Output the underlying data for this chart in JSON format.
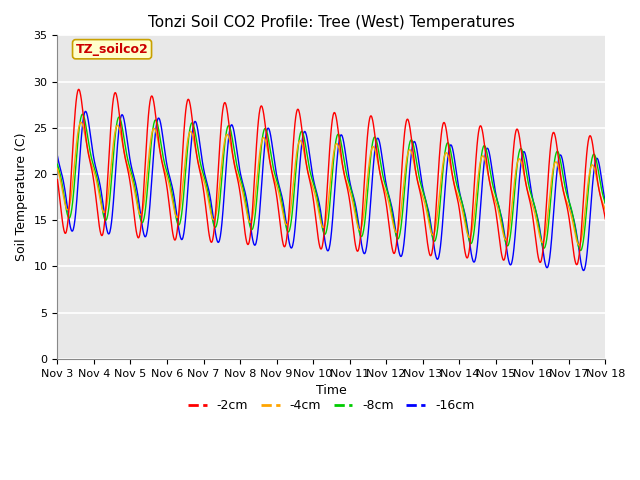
{
  "title": "Tonzi Soil CO2 Profile: Tree (West) Temperatures",
  "xlabel": "Time",
  "ylabel": "Soil Temperature (C)",
  "ylim": [
    0,
    35
  ],
  "yticks": [
    0,
    5,
    10,
    15,
    20,
    25,
    30,
    35
  ],
  "x_tick_labels": [
    "Nov 3",
    "Nov 4",
    "Nov 5",
    "Nov 6",
    "Nov 7",
    "Nov 8",
    "Nov 9",
    "Nov 10",
    "Nov 11",
    "Nov 12",
    "Nov 13",
    "Nov 14",
    "Nov 15",
    "Nov 16",
    "Nov 17",
    "Nov 18"
  ],
  "legend_label": "TZ_soilco2",
  "legend_box_color": "#ffffcc",
  "legend_box_edge": "#c8a000",
  "colors": {
    "-2cm": "#ff0000",
    "-4cm": "#ffa500",
    "-8cm": "#00cc00",
    "-16cm": "#0000ff"
  },
  "line_width": 1.0,
  "background_plot": "#e8e8e8",
  "background_outer": "#ffffff",
  "grid_color": "#ffffff",
  "title_fontsize": 11,
  "label_fontsize": 9,
  "tick_fontsize": 8
}
